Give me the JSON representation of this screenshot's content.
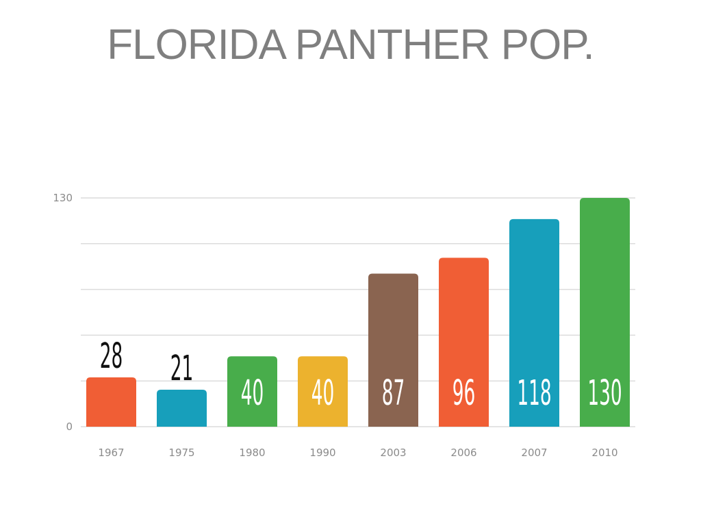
{
  "chart_data": {
    "type": "bar",
    "title": "FLORIDA PANTHER POP.",
    "xlabel": "",
    "ylabel": "",
    "categories": [
      "1967",
      "1975",
      "1980",
      "1990",
      "2003",
      "2006",
      "2007",
      "2010"
    ],
    "values": [
      28,
      21,
      40,
      40,
      87,
      96,
      118,
      130
    ],
    "colors": [
      "#f05e35",
      "#179fbb",
      "#48ad4b",
      "#ecb22e",
      "#8a6450",
      "#f05e35",
      "#179fbb",
      "#48ad4b"
    ],
    "value_labels": [
      "28",
      "21",
      "40",
      "40",
      "87",
      "96",
      "118",
      "130"
    ],
    "ylim": [
      0,
      130
    ],
    "y_tick_labels": [
      "0",
      "130"
    ],
    "y_ticks": [
      0,
      130
    ],
    "grid": true,
    "legend": "none"
  }
}
